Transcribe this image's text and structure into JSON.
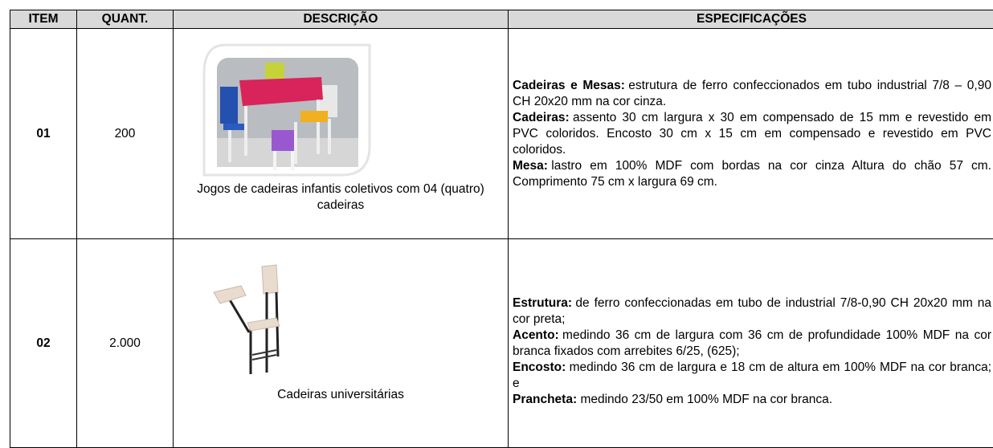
{
  "table": {
    "headers": [
      "ITEM",
      "QUANT.",
      "DESCRIÇÃO",
      "ESPECIFICAÇÕES"
    ],
    "rows": [
      {
        "item": "01",
        "quantity": "200",
        "description": "Jogos de cadeiras infantis coletivos com 04 (quatro) cadeiras",
        "specs": [
          {
            "label": "Cadeiras e Mesas:",
            "text": "estrutura de ferro confeccionados em tubo industrial 7/8 – 0,90 CH 20x20 mm na cor cinza."
          },
          {
            "label": "Cadeiras:",
            "text": "assento 30 cm largura x 30 em compensado de 15 mm e revestido em PVC coloridos. Encosto 30 cm x 15 cm em compensado e revestido em PVC coloridos."
          },
          {
            "label": "Mesa:",
            "text": "lastro em 100% MDF com bordas na cor cinza Altura do chão 57 cm. Comprimento 75 cm x largura 69 cm."
          }
        ]
      },
      {
        "item": "02",
        "quantity": "2.000",
        "description": "Cadeiras universitárias",
        "specs": [
          {
            "label": "Estrutura:",
            "text": "de ferro confeccionadas em tubo de industrial 7/8-0,90 CH 20x20 mm na cor preta;"
          },
          {
            "label": "Acento:",
            "text": "medindo 36 cm de largura com 36 cm de profundidade 100% MDF na cor branca fixados com arrebites 6/25, (625);"
          },
          {
            "label": "Encosto:",
            "text": "medindo 36 cm de largura e 18 cm de altura em 100% MDF na cor branca; e"
          },
          {
            "label": "Prancheta:",
            "text": "medindo 23/50 em 100% MDF na cor branca."
          }
        ]
      }
    ]
  }
}
